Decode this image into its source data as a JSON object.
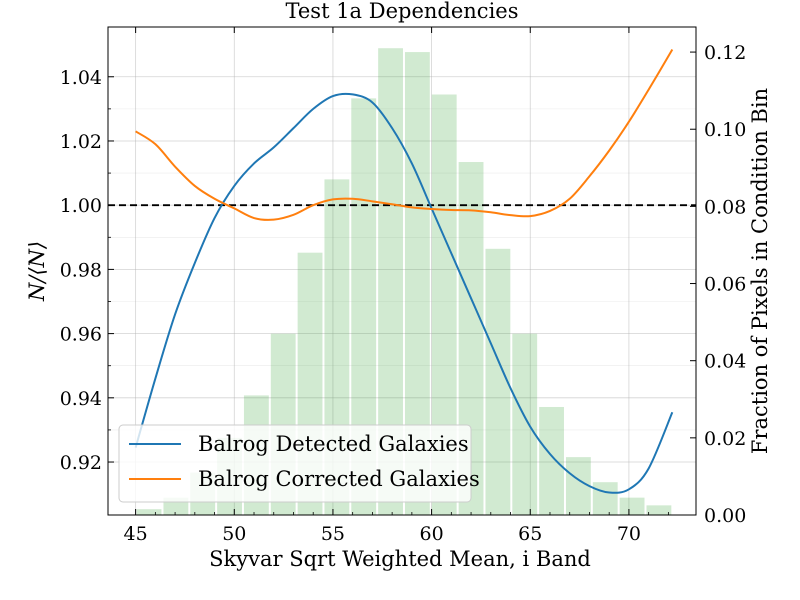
{
  "chart_data": {
    "type": "line",
    "title": "Test 1a Dependencies",
    "xlabel": "Skyvar Sqrt Weighted Mean, i Band",
    "ylabel": "N/⟨N⟩",
    "y2label": "Fraction of Pixels in Condition Bin",
    "xlim": [
      43.6,
      73.4
    ],
    "ylim": [
      0.9035,
      1.0555
    ],
    "y2lim": [
      0.0,
      0.1265
    ],
    "xticks": [
      45,
      50,
      55,
      60,
      65,
      70
    ],
    "yticks": [
      0.92,
      0.94,
      0.96,
      0.98,
      1.0,
      1.02,
      1.04
    ],
    "yticklabels": [
      "0.92",
      "0.94",
      "0.96",
      "0.98",
      "1.00",
      "1.02",
      "1.04"
    ],
    "y2ticks": [
      0.0,
      0.02,
      0.04,
      0.06,
      0.08,
      0.1,
      0.12
    ],
    "y2ticklabels": [
      "0.00",
      "0.02",
      "0.04",
      "0.06",
      "0.08",
      "0.10",
      "0.12"
    ],
    "grid": true,
    "reference_line": {
      "y": 1.0,
      "style": "dashed",
      "color": "#000000"
    },
    "histogram": {
      "axis": "right",
      "color": "#2ca02c",
      "opacity": 0.22,
      "bin_edges": [
        45.0,
        46.36,
        47.72,
        49.08,
        50.44,
        51.8,
        53.16,
        54.52,
        55.88,
        57.24,
        58.6,
        59.96,
        61.32,
        62.68,
        64.04,
        65.4,
        66.76,
        68.12,
        69.48,
        70.84,
        72.2
      ],
      "values": [
        0.0015,
        0.0045,
        0.011,
        0.02,
        0.031,
        0.047,
        0.068,
        0.087,
        0.108,
        0.121,
        0.12,
        0.109,
        0.0915,
        0.069,
        0.047,
        0.028,
        0.015,
        0.0085,
        0.0045,
        0.0025
      ]
    },
    "series": [
      {
        "name": "Balrog Detected Galaxies",
        "color": "#1f77b4",
        "x": [
          45,
          46,
          47,
          48,
          49,
          50,
          51,
          52,
          53,
          54,
          55,
          56,
          57,
          58,
          59,
          60,
          61,
          62,
          63,
          64,
          65,
          66,
          67,
          68,
          69,
          70,
          71,
          72.2
        ],
        "y": [
          0.9245,
          0.946,
          0.966,
          0.982,
          0.996,
          1.006,
          1.013,
          1.018,
          1.024,
          1.03,
          1.034,
          1.0345,
          1.032,
          1.024,
          1.013,
          0.999,
          0.985,
          0.971,
          0.957,
          0.943,
          0.931,
          0.9225,
          0.9165,
          0.9125,
          0.9105,
          0.9115,
          0.918,
          0.9355
        ]
      },
      {
        "name": "Balrog Corrected Galaxies",
        "color": "#ff7f0e",
        "x": [
          45,
          46,
          47,
          48,
          49,
          50,
          51,
          52,
          53,
          54,
          55,
          56,
          57,
          58,
          59,
          60,
          61,
          62,
          63,
          64,
          65,
          66,
          67,
          68,
          69,
          70,
          71,
          72.2
        ],
        "y": [
          1.023,
          1.019,
          1.012,
          1.006,
          1.002,
          0.999,
          0.996,
          0.9955,
          0.997,
          1.0,
          1.0018,
          1.002,
          1.0012,
          1.0003,
          0.9993,
          0.9988,
          0.9985,
          0.9984,
          0.9978,
          0.9969,
          0.9966,
          0.9982,
          1.002,
          1.009,
          1.017,
          1.026,
          1.036,
          1.0485
        ]
      }
    ],
    "legend": {
      "placement": "lower-left"
    }
  }
}
